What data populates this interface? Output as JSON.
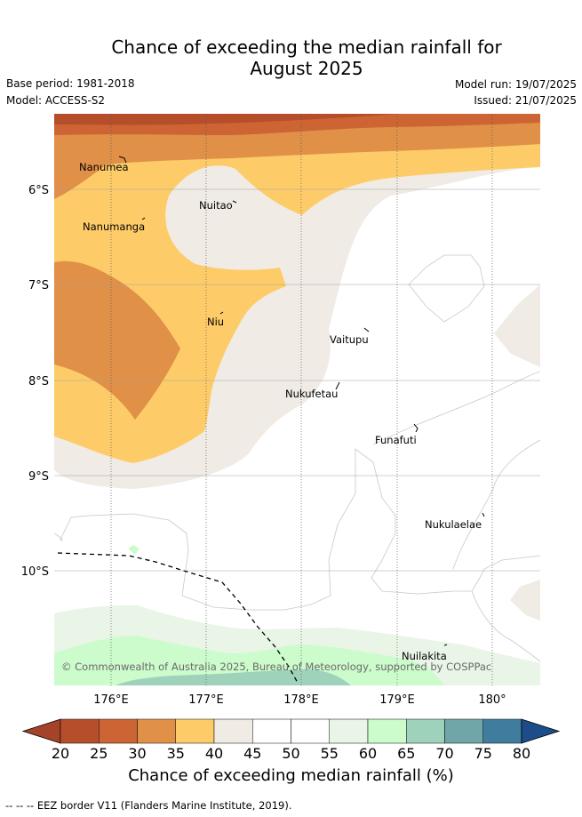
{
  "title_line1": "Chance of exceeding the median rainfall for",
  "title_line2": "August 2025",
  "base_period": "Base period: 1981-2018",
  "model": "Model: ACCESS-S2",
  "model_run": "Model run: 19/07/2025",
  "issued": "Issued: 21/07/2025",
  "map": {
    "lat_labels": [
      "6°S",
      "7°S",
      "8°S",
      "9°S",
      "10°S"
    ],
    "lon_labels": [
      "176°E",
      "177°E",
      "178°E",
      "179°E",
      "180°"
    ],
    "places": [
      "Nanumea",
      "Nuitao",
      "Nanumanga",
      "Niu",
      "Vaitupu",
      "Nukufetau",
      "Funafuti",
      "Nukulaelae",
      "Nuilakita"
    ],
    "copyright": "© Commonwealth of Australia 2025, Bureau of Meteorology, supported by COSPPac"
  },
  "colorbar": {
    "ticks": [
      "20",
      "25",
      "30",
      "35",
      "40",
      "45",
      "50",
      "55",
      "60",
      "65",
      "70",
      "75",
      "80"
    ],
    "colors": [
      "#a4432a",
      "#b64d2b",
      "#cc6533",
      "#e19048",
      "#fdcc68",
      "#f0ebe5",
      "#ffffff",
      "#ffffff",
      "#e9f5e6",
      "#ccfbcc",
      "#9ed2bb",
      "#70a6a7",
      "#3f7c9e",
      "#1c4d88"
    ],
    "title": "Chance of exceeding median rainfall (%)"
  },
  "eez_note": "--  --  -- EEZ border V11 (Flanders Marine Institute, 2019)."
}
